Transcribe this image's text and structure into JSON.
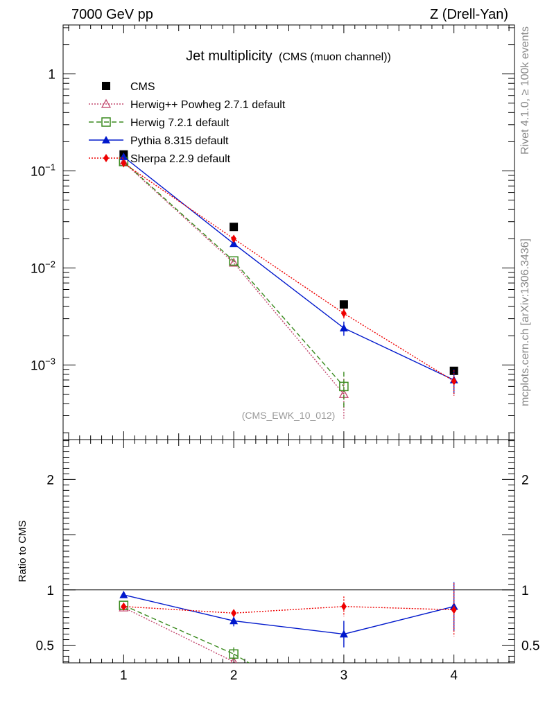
{
  "header": {
    "left": "7000 GeV pp",
    "right": "Z (Drell-Yan)"
  },
  "side": {
    "rivet": "Rivet 4.1.0, ≥ 100k events",
    "source": "mcplots.cern.ch [arXiv:1306.3436]"
  },
  "plot": {
    "title_main": "Jet multiplicity",
    "title_sub": "(CMS (muon channel))",
    "analysis_id": "(CMS_EWK_10_012)",
    "ratio_ylabel": "Ratio to CMS"
  },
  "chart_data": {
    "type": "scatter",
    "x": [
      1,
      2,
      3,
      4
    ],
    "xlim": [
      0.45,
      4.55
    ],
    "xticks": [
      "1",
      "2",
      "3",
      "4"
    ],
    "main": {
      "yscale": "log",
      "ylim": [
        0.00017,
        3.2
      ],
      "yticks": [
        {
          "value": 1,
          "label": "1"
        },
        {
          "value": 0.1,
          "label": "10",
          "exp": "−1"
        },
        {
          "value": 0.01,
          "label": "10",
          "exp": "−2"
        },
        {
          "value": 0.001,
          "label": "10",
          "exp": "−3"
        }
      ]
    },
    "ratio": {
      "yscale": "linear",
      "ylim": [
        0.34,
        2.36
      ],
      "yticks": [
        {
          "value": 0.5,
          "label": "0.5"
        },
        {
          "value": 1,
          "label": "1"
        },
        {
          "value": 2,
          "label": "2"
        }
      ]
    },
    "series": [
      {
        "name": "CMS",
        "color": "#000000",
        "marker": "square-filled",
        "line": "none",
        "values": [
          0.148,
          0.0265,
          0.0042,
          0.00087
        ],
        "ratio": [
          1,
          1,
          1,
          1
        ]
      },
      {
        "name": "Herwig++ Powheg 2.7.1 default",
        "color": "#c3486e",
        "marker": "triangle-open",
        "line": "dotted",
        "values": [
          0.123,
          0.0113,
          0.0005,
          null
        ],
        "err": [
          0,
          0,
          0.00022,
          null
        ],
        "ratio": [
          0.84,
          0.35,
          null,
          null
        ]
      },
      {
        "name": "Herwig 7.2.1 default",
        "color": "#3a8a1e",
        "marker": "square-open",
        "line": "dashed",
        "values": [
          0.125,
          0.0118,
          0.0006,
          null
        ],
        "err": [
          0,
          0,
          0.00025,
          null
        ],
        "ratio": [
          0.86,
          0.42,
          null,
          null
        ],
        "ratio_err": [
          0,
          0.06,
          null,
          null
        ]
      },
      {
        "name": "Pythia 8.315 default",
        "color": "#0018cc",
        "marker": "triangle-filled",
        "line": "solid",
        "values": [
          0.14,
          0.0178,
          0.0024,
          0.0007
        ],
        "err": [
          0,
          0,
          0.0004,
          0.0002
        ],
        "ratio": [
          0.955,
          0.72,
          0.6,
          0.85
        ],
        "ratio_err": [
          0,
          0.05,
          0.12,
          0.22
        ]
      },
      {
        "name": "Sherpa 2.2.9 default",
        "color": "#ee0000",
        "marker": "diamond-filled",
        "line": "dotted",
        "values": [
          0.12,
          0.02,
          0.0034,
          0.00068
        ],
        "err": [
          0,
          0,
          0.0004,
          0.0002
        ],
        "ratio": [
          0.85,
          0.79,
          0.85,
          0.82
        ],
        "ratio_err": [
          0,
          0.03,
          0.09,
          0.24
        ]
      }
    ]
  }
}
